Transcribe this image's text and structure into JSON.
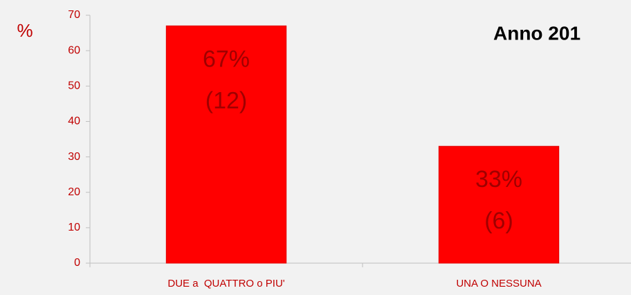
{
  "chart_data": {
    "type": "bar",
    "title": "Anno 201",
    "y_label": "%",
    "categories": [
      "DUE a  QUATTRO o PIU'",
      "UNA O NESSUNA"
    ],
    "values": [
      67,
      33
    ],
    "value_labels": [
      "67%",
      "33%"
    ],
    "count_labels": [
      "(12)",
      "(6)"
    ],
    "color": "#ff0000",
    "ylim": [
      0,
      70
    ],
    "yticks": [
      0,
      10,
      20,
      30,
      40,
      50,
      60,
      70
    ],
    "grid": false
  }
}
